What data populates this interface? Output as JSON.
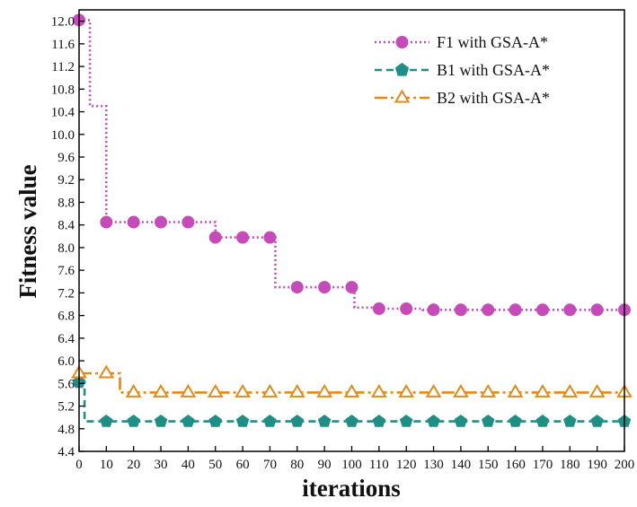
{
  "chart_data": {
    "type": "line",
    "xlabel": "iterations",
    "ylabel": "Fitness value",
    "xlim": [
      0,
      200
    ],
    "ylim": [
      4.4,
      12.2
    ],
    "x_ticks": [
      0,
      10,
      20,
      30,
      40,
      50,
      60,
      70,
      80,
      90,
      100,
      110,
      120,
      130,
      140,
      150,
      160,
      170,
      180,
      190,
      200
    ],
    "x_tick_labels": [
      "0",
      "10",
      "20",
      "30",
      "40",
      "50",
      "60",
      "70",
      "80",
      "90",
      "100",
      "110",
      "120",
      "130",
      "140",
      "150",
      "160",
      "170",
      "180",
      "190",
      "200"
    ],
    "y_ticks": [
      4.4,
      4.8,
      5.2,
      5.6,
      6.0,
      6.4,
      6.8,
      7.2,
      7.6,
      8.0,
      8.4,
      8.8,
      9.2,
      9.6,
      10.0,
      10.4,
      10.8,
      11.2,
      11.6,
      12.0
    ],
    "y_tick_labels": [
      "4.4",
      "4.8",
      "5.2",
      "5.6",
      "6.0",
      "6.4",
      "6.8",
      "7.2",
      "7.6",
      "8.0",
      "8.4",
      "8.8",
      "9.2",
      "9.6",
      "10.0",
      "10.4",
      "10.8",
      "11.2",
      "11.6",
      "12.0"
    ],
    "grid": false,
    "legend_position": "top-right",
    "series": [
      {
        "name": "F1 with GSA-A*",
        "color": "#c54bb8",
        "line_style": "dotted",
        "marker": "circle",
        "steps": [
          [
            0,
            12.02
          ],
          [
            4,
            10.5
          ],
          [
            10,
            8.45
          ],
          [
            50,
            8.18
          ],
          [
            72,
            7.3
          ],
          [
            101,
            6.94
          ],
          [
            110,
            6.92
          ],
          [
            120,
            6.92
          ],
          [
            126,
            6.9
          ],
          [
            200,
            6.9
          ]
        ],
        "markers_x": [
          0,
          10,
          20,
          30,
          40,
          50,
          60,
          70,
          80,
          90,
          100,
          110,
          120,
          130,
          140,
          150,
          160,
          170,
          180,
          190,
          200
        ]
      },
      {
        "name": "B1 with GSA-A*",
        "color": "#1f8f86",
        "line_style": "dashed",
        "marker": "pentagon",
        "steps": [
          [
            0,
            5.62
          ],
          [
            2,
            4.93
          ],
          [
            200,
            4.93
          ]
        ],
        "markers_x": [
          0,
          10,
          20,
          30,
          40,
          50,
          60,
          70,
          80,
          90,
          100,
          110,
          120,
          130,
          140,
          150,
          160,
          170,
          180,
          190,
          200
        ]
      },
      {
        "name": "B2 with GSA-A*",
        "color": "#e08a1e",
        "line_style": "dash-dot",
        "marker": "triangle-open",
        "steps": [
          [
            0,
            5.78
          ],
          [
            15,
            5.44
          ],
          [
            200,
            5.44
          ]
        ],
        "markers_x": [
          0,
          10,
          20,
          30,
          40,
          50,
          60,
          70,
          80,
          90,
          100,
          110,
          120,
          130,
          140,
          150,
          160,
          170,
          180,
          190,
          200
        ]
      }
    ]
  }
}
